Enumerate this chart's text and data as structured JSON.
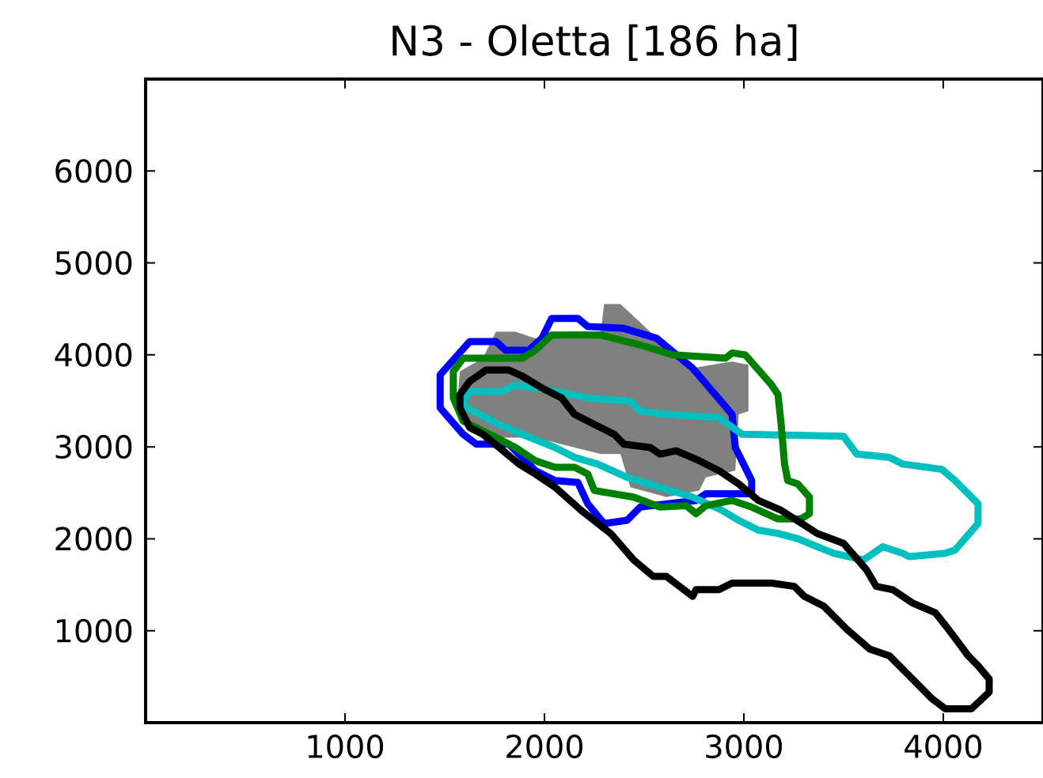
{
  "chart_data": {
    "type": "line",
    "title": "N3 - Oletta [186 ha]",
    "xlim": [
      0,
      4500
    ],
    "ylim": [
      0,
      7000
    ],
    "xticks": [
      1000,
      2000,
      3000,
      4000
    ],
    "yticks": [
      1000,
      2000,
      3000,
      4000,
      5000,
      6000
    ],
    "series": [
      {
        "type": "area",
        "color": "#808080",
        "x": [
          1576,
          1691,
          1757,
          1855,
          1954,
          2118,
          2283,
          2299,
          2381,
          2530,
          2743,
          2941,
          3023,
          3023,
          2974,
          2957,
          2809,
          2776,
          2612,
          2431,
          2381,
          2283,
          2151,
          1954,
          1757,
          1625,
          1559
        ],
        "values": [
          3820,
          3964,
          4252,
          4252,
          4180,
          4252,
          4252,
          4554,
          4554,
          4252,
          3856,
          3928,
          3892,
          3388,
          3353,
          2741,
          2669,
          2525,
          2453,
          2561,
          2921,
          2921,
          2993,
          3101,
          3101,
          3209,
          3388
        ]
      },
      {
        "color": "#0000ff",
        "x": [
          1477,
          1477,
          1625,
          1757,
          1806,
          1921,
          1987,
          2036,
          2168,
          2217,
          2398,
          2563,
          2743,
          2941,
          2957,
          3039,
          null,
          3039,
          3039,
          2809,
          2760,
          2480,
          2414,
          2299,
          2217,
          2168,
          2053,
          1954,
          1822,
          1658,
          1592,
          1477,
          1477
        ],
        "values": [
          3604,
          3784,
          4144,
          4144,
          4050,
          4050,
          4180,
          4396,
          4396,
          4309,
          4288,
          4180,
          3856,
          3353,
          2993,
          2633,
          null,
          2633,
          2489,
          2489,
          2417,
          2345,
          2201,
          2165,
          2381,
          2612,
          2633,
          2741,
          3029,
          3029,
          3137,
          3424,
          3604
        ]
      },
      {
        "color": "#00bfbf",
        "x": [
          1592,
          1625,
          1789,
          1855,
          2053,
          2217,
          2431,
          2480,
          2612,
          2875,
          2990,
          3500,
          3566,
          3730,
          3796,
          3993,
          4059,
          4174,
          null,
          4174,
          4174,
          4059,
          4010,
          3829,
          3796,
          3697,
          3599,
          3451,
          3270,
          3171,
          3072,
          2974,
          2891,
          2743,
          2579,
          2414,
          2266,
          2151,
          2053,
          1888,
          1773,
          1674,
          1609,
          1592
        ],
        "values": [
          3496,
          3604,
          3604,
          3676,
          3604,
          3532,
          3496,
          3388,
          3353,
          3317,
          3137,
          3115,
          2921,
          2885,
          2813,
          2755,
          2633,
          2381,
          null,
          2381,
          2165,
          1878,
          1842,
          1806,
          1842,
          1914,
          1770,
          1842,
          2000,
          2058,
          2094,
          2201,
          2309,
          2453,
          2561,
          2669,
          2813,
          2885,
          2993,
          3137,
          3245,
          3353,
          3424,
          3496
        ]
      },
      {
        "color": "#008000",
        "x": [
          1543,
          1543,
          1592,
          1888,
          1954,
          2036,
          2283,
          2480,
          2645,
          2908,
          2941,
          3007,
          3138,
          3171,
          3187,
          3204,
          3220,
          3270,
          3329,
          null,
          3329,
          3329,
          3286,
          3171,
          3039,
          2941,
          2809,
          2760,
          2711,
          2579,
          2447,
          2250,
          2217,
          2151,
          2053,
          1954,
          1855,
          1724,
          1592,
          1543
        ],
        "values": [
          3532,
          3820,
          3964,
          3964,
          4050,
          4216,
          4216,
          4108,
          4000,
          3964,
          4021,
          4000,
          3676,
          3568,
          3245,
          2813,
          2633,
          2597,
          2453,
          null,
          2453,
          2273,
          2216,
          2216,
          2345,
          2417,
          2360,
          2273,
          2360,
          2345,
          2453,
          2525,
          2705,
          2777,
          2777,
          2849,
          2993,
          3137,
          3281,
          3532
        ]
      },
      {
        "color": "#000000",
        "x": [
          1576,
          1576,
          1625,
          1707,
          1822,
          1888,
          1987,
          2086,
          2151,
          2250,
          2349,
          2398,
          2530,
          2579,
          2661,
          2776,
          2875,
          2974,
          3072,
          3187,
          3368,
          3500,
          3615,
          3664,
          3747,
          3845,
          3961,
          4026,
          4076,
          4125,
          4174,
          4230,
          null,
          4230,
          4230,
          4141,
          4010,
          3944,
          3829,
          3730,
          3632,
          3517,
          3401,
          3303,
          3253,
          3138,
          2941,
          2875,
          2760,
          2743,
          2612,
          2546,
          2447,
          2332,
          2184,
          2053,
          1954,
          1872,
          1773,
          1691,
          1625,
          1576
        ],
        "values": [
          3424,
          3568,
          3712,
          3835,
          3835,
          3770,
          3640,
          3532,
          3353,
          3245,
          3137,
          3029,
          2993,
          2921,
          2957,
          2849,
          2741,
          2597,
          2417,
          2309,
          2058,
          1950,
          1662,
          1482,
          1446,
          1302,
          1194,
          1014,
          870,
          727,
          619,
          475,
          null,
          475,
          331,
          151,
          151,
          259,
          511,
          727,
          799,
          1014,
          1266,
          1374,
          1482,
          1518,
          1518,
          1446,
          1446,
          1374,
          1590,
          1590,
          1770,
          2058,
          2309,
          2561,
          2705,
          2813,
          2993,
          3137,
          3209,
          3424
        ]
      }
    ]
  }
}
